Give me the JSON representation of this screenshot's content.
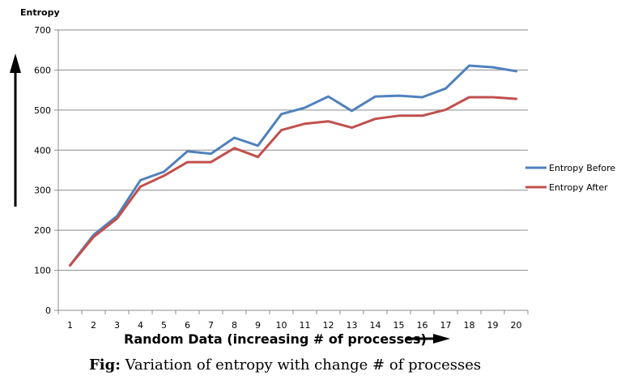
{
  "chart_data": {
    "type": "line",
    "x": [
      1,
      2,
      3,
      4,
      5,
      6,
      7,
      8,
      9,
      10,
      11,
      12,
      13,
      14,
      15,
      16,
      17,
      18,
      19,
      20
    ],
    "series": [
      {
        "name": "Entropy Before",
        "color": "#4f81bd",
        "values": [
          112,
          188,
          235,
          325,
          346,
          397,
          391,
          431,
          411,
          490,
          506,
          534,
          498,
          534,
          536,
          532,
          554,
          611,
          607,
          597
        ]
      },
      {
        "name": "Entropy After",
        "color": "#c0504d",
        "values": [
          112,
          183,
          229,
          309,
          336,
          370,
          370,
          405,
          383,
          450,
          466,
          472,
          456,
          478,
          486,
          486,
          501,
          532,
          532,
          528
        ]
      }
    ],
    "title": "",
    "ylabel": "Entropy",
    "xlabel": "Random Data (increasing # of processes)",
    "ylim": [
      0,
      700
    ],
    "yticks": [
      0,
      100,
      200,
      300,
      400,
      500,
      600,
      700
    ],
    "grid": true,
    "legend_position": "right",
    "caption_prefix": "Fig:",
    "caption_text": " Variation of entropy with change # of processes",
    "annotations": [
      "up-arrow-left",
      "right-arrow-after-xlabel"
    ]
  }
}
